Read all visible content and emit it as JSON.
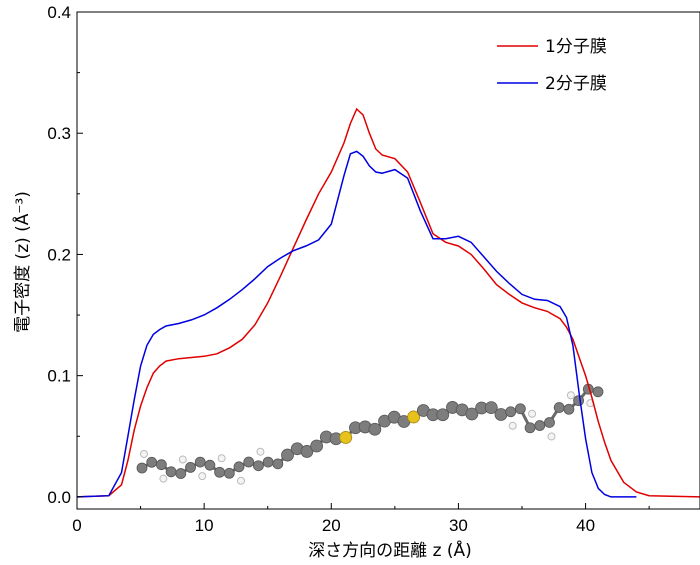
{
  "chart_data": {
    "type": "line",
    "xlabel": "深さ方向の距離 z (Å)",
    "ylabel": "電子密度 (z) (Å⁻³)",
    "xlim": [
      0,
      49
    ],
    "ylim": [
      -0.01,
      0.4
    ],
    "x_ticks": [
      "0",
      "10",
      "20",
      "30",
      "40"
    ],
    "y_ticks": [
      "0.0",
      "0.1",
      "0.2",
      "0.3",
      "0.4"
    ],
    "grid": false,
    "legend_position": "top-right",
    "series": [
      {
        "name": "1分子膜",
        "color": "#e00000",
        "x": [
          0,
          2.5,
          3.5,
          4,
          4.5,
          5,
          5.5,
          6,
          6.5,
          7,
          8,
          9,
          10,
          11,
          12,
          13,
          14,
          15,
          16,
          17,
          18,
          19,
          20,
          21,
          21.5,
          22,
          22.5,
          23,
          23.5,
          24,
          25,
          26,
          27,
          28,
          29,
          30,
          31,
          32,
          33,
          34,
          35,
          36,
          37,
          38,
          38.5,
          39,
          39.5,
          40,
          40.5,
          41,
          41.5,
          42,
          43,
          44,
          45,
          49
        ],
        "y": [
          0,
          0.001,
          0.01,
          0.03,
          0.055,
          0.075,
          0.09,
          0.102,
          0.108,
          0.112,
          0.114,
          0.115,
          0.116,
          0.118,
          0.123,
          0.13,
          0.142,
          0.16,
          0.182,
          0.205,
          0.228,
          0.25,
          0.268,
          0.292,
          0.308,
          0.32,
          0.315,
          0.3,
          0.287,
          0.282,
          0.279,
          0.268,
          0.243,
          0.217,
          0.21,
          0.207,
          0.2,
          0.188,
          0.175,
          0.167,
          0.16,
          0.156,
          0.153,
          0.147,
          0.14,
          0.13,
          0.115,
          0.1,
          0.082,
          0.062,
          0.045,
          0.03,
          0.012,
          0.004,
          0.001,
          0
        ]
      },
      {
        "name": "2分子膜",
        "color": "#0000e0",
        "x": [
          0,
          2.5,
          3.5,
          4,
          4.5,
          5,
          5.5,
          6,
          6.5,
          7,
          8,
          9,
          10,
          11,
          12,
          13,
          14,
          15,
          16,
          17,
          18,
          19,
          20,
          21,
          21.5,
          22,
          22.5,
          23,
          23.5,
          24,
          25,
          26,
          27,
          28,
          29,
          30,
          31,
          32,
          33,
          34,
          35,
          36,
          37,
          38,
          38.5,
          39,
          39.5,
          40,
          40.5,
          41,
          41.5,
          42,
          43,
          44
        ],
        "y": [
          0,
          0.001,
          0.02,
          0.05,
          0.08,
          0.108,
          0.125,
          0.134,
          0.138,
          0.141,
          0.143,
          0.146,
          0.15,
          0.156,
          0.163,
          0.171,
          0.18,
          0.19,
          0.197,
          0.203,
          0.207,
          0.212,
          0.225,
          0.265,
          0.283,
          0.285,
          0.281,
          0.273,
          0.268,
          0.267,
          0.27,
          0.263,
          0.236,
          0.213,
          0.213,
          0.215,
          0.21,
          0.198,
          0.186,
          0.176,
          0.167,
          0.163,
          0.162,
          0.157,
          0.148,
          0.125,
          0.085,
          0.048,
          0.02,
          0.007,
          0.002,
          0,
          0,
          0
        ]
      }
    ]
  }
}
